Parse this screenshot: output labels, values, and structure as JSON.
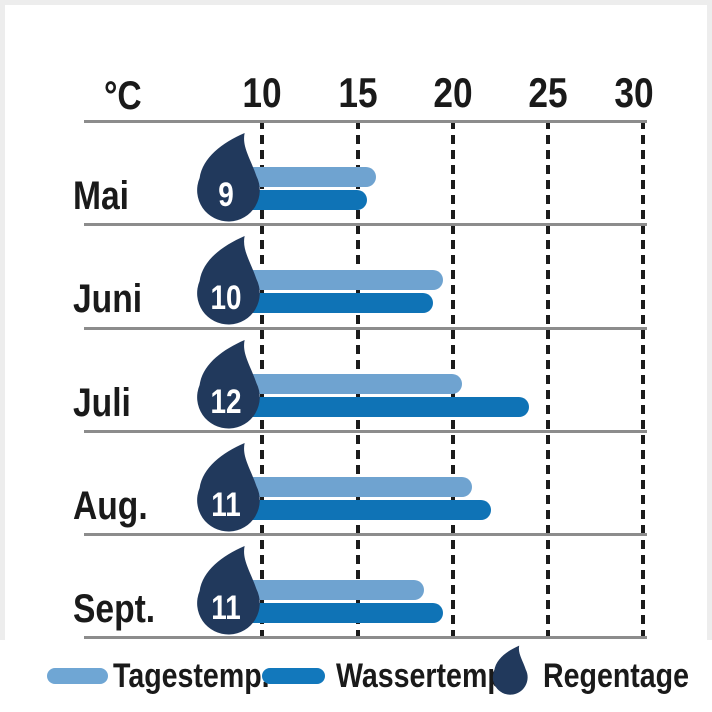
{
  "chart_data": {
    "type": "bar",
    "orientation": "horizontal",
    "unit": "°C",
    "ticks": [
      "10",
      "15",
      "20",
      "25",
      "30"
    ],
    "tick_values": [
      10,
      15,
      20,
      25,
      30
    ],
    "axis_range": [
      10,
      30
    ],
    "grid": "dashed-vertical",
    "rows": [
      {
        "month": "Mai",
        "rain_days": "9",
        "day_temp": 16,
        "water_temp": 15.5
      },
      {
        "month": "Juni",
        "rain_days": "10",
        "day_temp": 19.5,
        "water_temp": 19
      },
      {
        "month": "Juli",
        "rain_days": "12",
        "day_temp": 20.5,
        "water_temp": 24
      },
      {
        "month": "Aug.",
        "rain_days": "11",
        "day_temp": 21,
        "water_temp": 22
      },
      {
        "month": "Sept.",
        "rain_days": "11",
        "day_temp": 18.5,
        "water_temp": 19.5
      }
    ],
    "legend": {
      "position": "bottom",
      "day_label": "Tagestemp.",
      "water_label": "Wassertemp.",
      "rain_label": "Regentage"
    },
    "colors": {
      "day_bar": "#6FA3D0",
      "water_bar": "#0F73B6",
      "rain_drop": "#21395C",
      "line_gray": "#8C8C8C",
      "text": "#1A1A1A"
    },
    "icons": {
      "rain": "raindrop-icon"
    }
  }
}
